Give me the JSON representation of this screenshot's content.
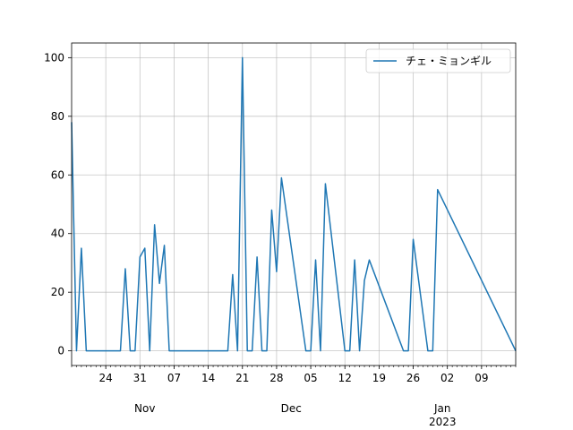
{
  "chart_data": {
    "type": "line",
    "x_axis_type": "date",
    "x_range": [
      "2022-10-17",
      "2023-01-16"
    ],
    "ylim": [
      -5,
      105
    ],
    "y_ticks": [
      0,
      20,
      40,
      60,
      80,
      100
    ],
    "grid": true,
    "legend_position": "top-right",
    "colors": {
      "series": "#1f77b4",
      "grid": "#b0b0b0",
      "axis": "#000000"
    },
    "x_major_ticks": [
      {
        "date": "2022-10-24",
        "label": "24"
      },
      {
        "date": "2022-10-31",
        "label": "31"
      },
      {
        "date": "2022-11-07",
        "label": "07"
      },
      {
        "date": "2022-11-14",
        "label": "14"
      },
      {
        "date": "2022-11-21",
        "label": "21"
      },
      {
        "date": "2022-11-28",
        "label": "28"
      },
      {
        "date": "2022-12-05",
        "label": "05"
      },
      {
        "date": "2022-12-12",
        "label": "12"
      },
      {
        "date": "2022-12-19",
        "label": "19"
      },
      {
        "date": "2022-12-26",
        "label": "26"
      },
      {
        "date": "2023-01-02",
        "label": "02"
      },
      {
        "date": "2023-01-09",
        "label": "09"
      }
    ],
    "month_labels": [
      {
        "date": "2022-11-01",
        "label": "Nov"
      },
      {
        "date": "2022-12-01",
        "label": "Dec"
      },
      {
        "date": "2023-01-01",
        "label": "Jan"
      }
    ],
    "year_labels": [
      {
        "date": "2023-01-01",
        "label": "2023"
      }
    ],
    "series": [
      {
        "name": "チェ・ミョンギル",
        "x": [
          "2022-10-17",
          "2022-10-18",
          "2022-10-19",
          "2022-10-20",
          "2022-10-24",
          "2022-10-27",
          "2022-10-28",
          "2022-10-29",
          "2022-10-30",
          "2022-10-31",
          "2022-11-01",
          "2022-11-02",
          "2022-11-03",
          "2022-11-04",
          "2022-11-05",
          "2022-11-06",
          "2022-11-07",
          "2022-11-08",
          "2022-11-18",
          "2022-11-19",
          "2022-11-20",
          "2022-11-21",
          "2022-11-22",
          "2022-11-23",
          "2022-11-24",
          "2022-11-25",
          "2022-11-26",
          "2022-11-27",
          "2022-11-28",
          "2022-11-29",
          "2022-12-04",
          "2022-12-05",
          "2022-12-06",
          "2022-12-07",
          "2022-12-08",
          "2022-12-12",
          "2022-12-13",
          "2022-12-14",
          "2022-12-15",
          "2022-12-16",
          "2022-12-17",
          "2022-12-24",
          "2022-12-25",
          "2022-12-26",
          "2022-12-29",
          "2022-12-30",
          "2022-12-31",
          "2023-01-16"
        ],
        "y": [
          78,
          0,
          35,
          0,
          0,
          0,
          28,
          0,
          0,
          32,
          35,
          0,
          43,
          23,
          36,
          0,
          0,
          0,
          0,
          26,
          0,
          100,
          0,
          0,
          32,
          0,
          0,
          48,
          27,
          59,
          0,
          0,
          31,
          0,
          57,
          0,
          0,
          31,
          0,
          24,
          31,
          0,
          0,
          38,
          0,
          0,
          55,
          0
        ]
      }
    ]
  }
}
